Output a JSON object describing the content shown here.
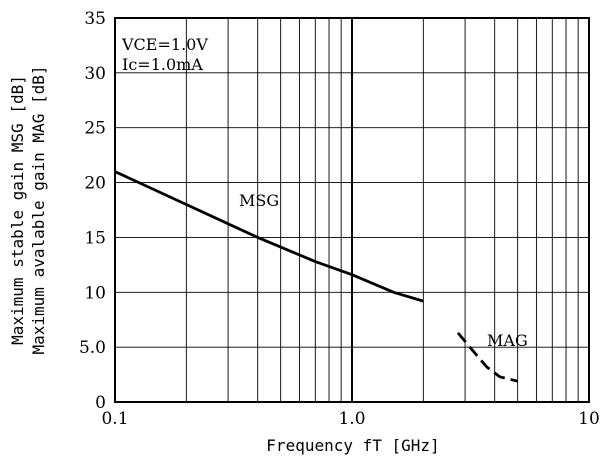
{
  "chart_data": {
    "type": "line",
    "title": "",
    "xlabel": "Frequency fT [GHz]",
    "ylabel": [
      "Maximum stable gain MSG [dB]",
      "Maximum avalable gain MAG [dB]"
    ],
    "x_scale": "log",
    "xlim": [
      0.1,
      10
    ],
    "ylim": [
      0,
      35
    ],
    "x_ticks": [
      "0.1",
      "1.0",
      "10"
    ],
    "y_ticks": [
      "0",
      "5.0",
      "10",
      "15",
      "20",
      "25",
      "30",
      "35"
    ],
    "grid": true,
    "conditions": [
      "VCE=1.0V",
      "Ic=1.0mA"
    ],
    "series": [
      {
        "name": "MSG",
        "style": "solid",
        "x": [
          0.1,
          0.2,
          0.4,
          0.7,
          1.0,
          1.5,
          2.0
        ],
        "y": [
          21.0,
          18.0,
          15.0,
          12.8,
          11.6,
          10.0,
          9.2
        ]
      },
      {
        "name": "MAG",
        "style": "dashed",
        "x": [
          2.8,
          3.2,
          3.7,
          4.2,
          5.0
        ],
        "y": [
          6.3,
          4.8,
          3.2,
          2.3,
          1.9
        ]
      }
    ]
  }
}
